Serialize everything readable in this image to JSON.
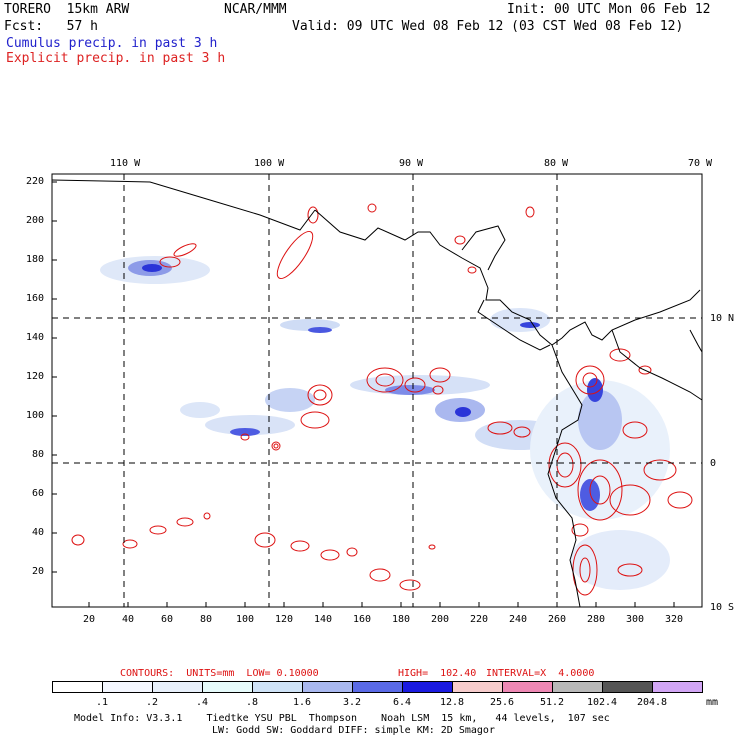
{
  "header": {
    "model": "TORERO  15km ARW",
    "center": "NCAR/MMM",
    "init": "Init: 00 UTC Mon 06 Feb 12",
    "fcst": "Fcst:   57 h",
    "valid": "Valid: 09 UTC Wed 08 Feb 12 (03 CST Wed 08 Feb 12)",
    "cumulus": "Cumulus precip. in past 3 h",
    "explicit": "Explicit precip. in past 3 h"
  },
  "colors": {
    "cumulus_title": "#2222cc",
    "explicit_title": "#dd2222",
    "contour": "#dd1111",
    "coast": "#000000"
  },
  "map": {
    "lon_labels": [
      "110 W",
      "100 W",
      "90 W",
      "80 W",
      "70 W"
    ],
    "lat_labels": [
      "10 N",
      "0",
      "10 S"
    ],
    "y_ticks": [
      "220",
      "200",
      "180",
      "160",
      "140",
      "120",
      "100",
      "80",
      "60",
      "40",
      "20"
    ],
    "x_ticks": [
      "20",
      "40",
      "60",
      "80",
      "100",
      "120",
      "140",
      "160",
      "180",
      "200",
      "220",
      "240",
      "260",
      "280",
      "300",
      "320"
    ]
  },
  "contour_info": {
    "label": "CONTOURS:  UNITS=mm  LOW= 0.10000",
    "high": "HIGH=  102.40",
    "interval": "INTERVAL=X  4.0000"
  },
  "legend": {
    "labels": [
      ".1",
      ".2",
      ".4",
      ".8",
      "1.6",
      "3.2",
      "6.4",
      "12.8",
      "25.6",
      "51.2",
      "102.4",
      "204.8"
    ],
    "unit": "mm",
    "colors": [
      "#ffffff",
      "#f4f7ff",
      "#e8f0fb",
      "#e6fbfb",
      "#cfe3f7",
      "#a9b8ef",
      "#5a6ae6",
      "#1a1ae0",
      "#f6cccc",
      "#ee88b4",
      "#b8b8b8",
      "#555555",
      "#d2a6f5"
    ]
  },
  "footer": {
    "line1": "Model Info: V3.3.1    Tiedtke YSU PBL  Thompson    Noah LSM  15 km,   44 levels,  107 sec",
    "line2": "LW: Godd SW: Goddard DIFF: simple KM: 2D Smagor"
  }
}
